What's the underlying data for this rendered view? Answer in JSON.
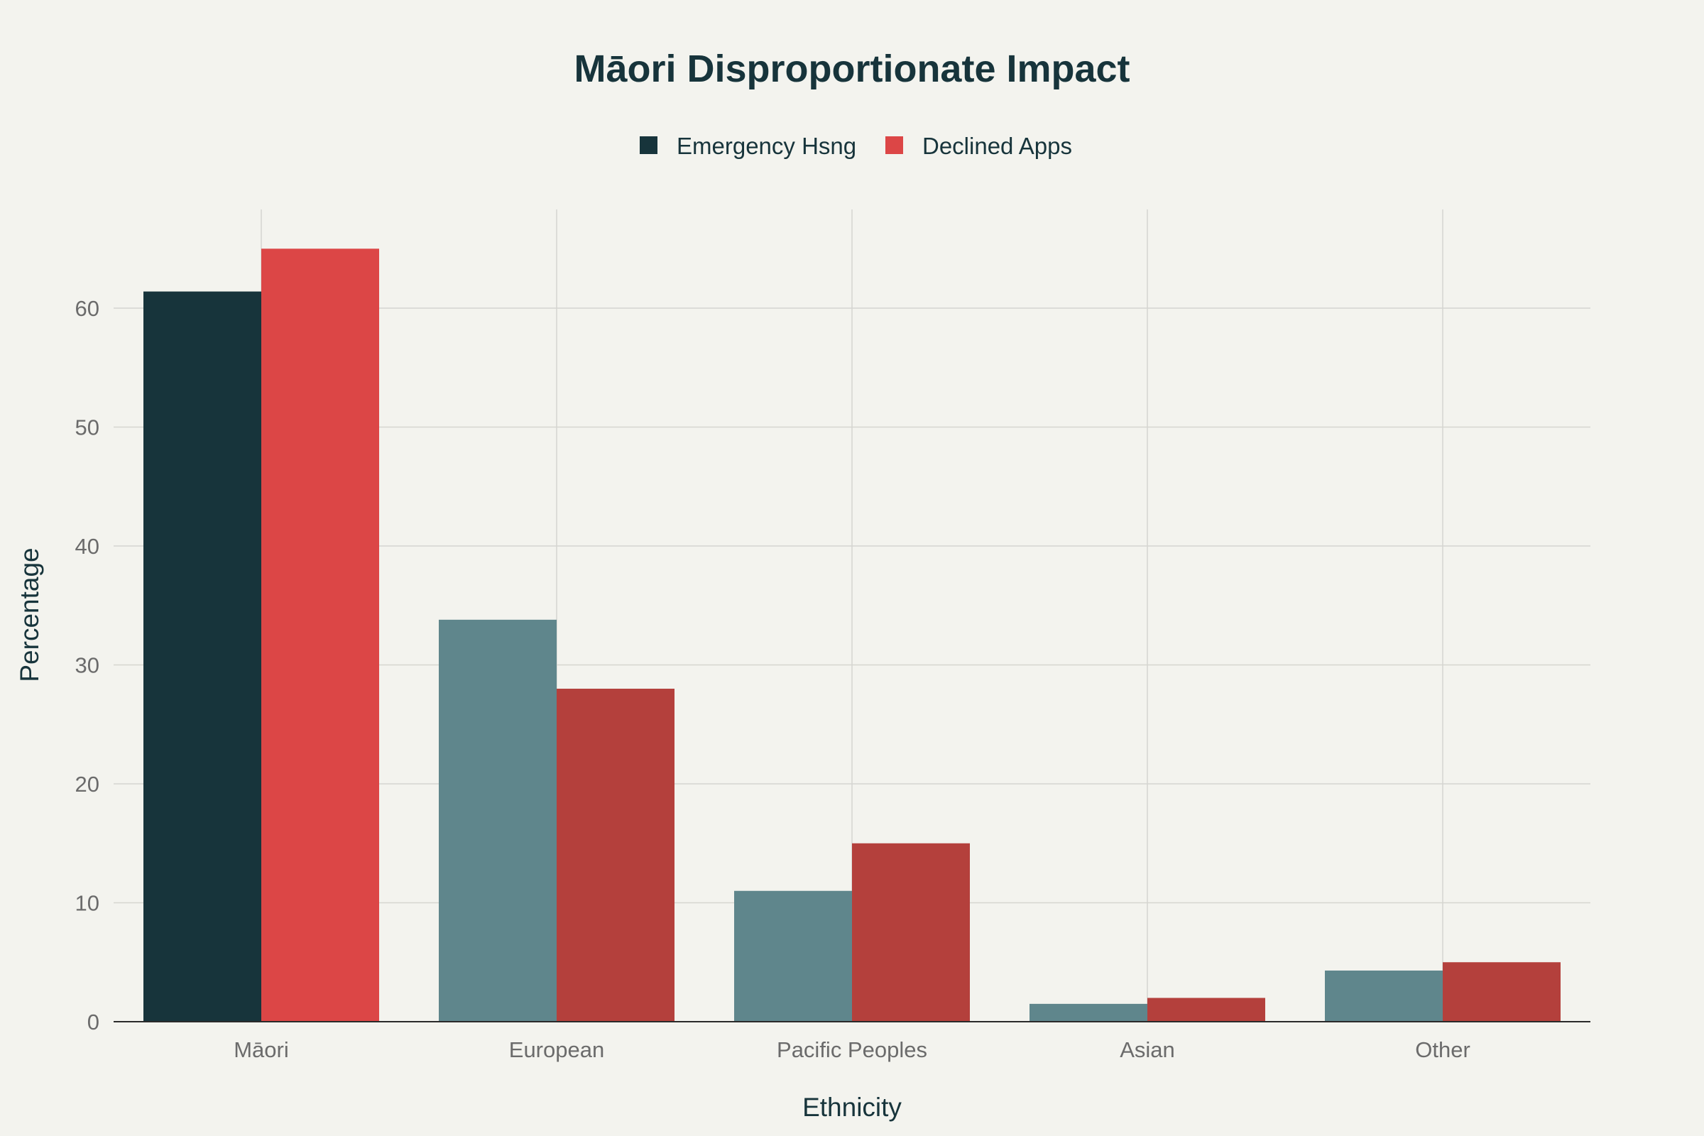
{
  "chart_data": {
    "type": "bar",
    "title": "Māori Disproportionate Impact",
    "xlabel": "Ethnicity",
    "ylabel": "Percentage",
    "categories": [
      "Māori",
      "European",
      "Pacific Peoples",
      "Asian",
      "Other"
    ],
    "series": [
      {
        "name": "Emergency Hsng",
        "values": [
          61.4,
          33.8,
          11.0,
          1.5,
          4.3
        ],
        "colors": [
          "#17343b",
          "#5f868c",
          "#5f868c",
          "#5f868c",
          "#5f868c"
        ]
      },
      {
        "name": "Declined Apps",
        "values": [
          65,
          28,
          15,
          2,
          5
        ],
        "colors": [
          "#dc4646",
          "#b4403c",
          "#b4403c",
          "#b4403c",
          "#b4403c"
        ]
      }
    ],
    "legend_colors": [
      "#17343b",
      "#dc4646"
    ],
    "ylim": [
      0,
      68.3
    ],
    "yticks": [
      0,
      10,
      20,
      30,
      40,
      50,
      60
    ],
    "grid": true,
    "legend_position": "top-center"
  }
}
